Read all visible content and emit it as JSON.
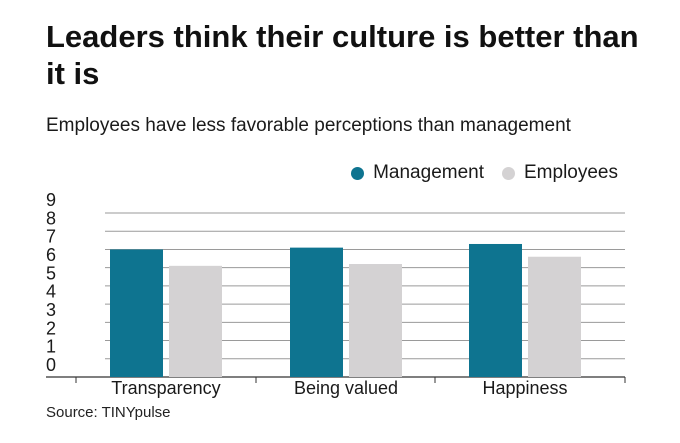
{
  "title": "Leaders think their culture is better than it is",
  "subtitle": "Employees have less favorable perceptions than management",
  "source": "Source: TINYpulse",
  "colors": {
    "management": "#0e7490",
    "employees": "#d4d2d3",
    "grid": "#9a9a9a",
    "axis": "#333333",
    "text": "#1a1a1a"
  },
  "chart_data": {
    "type": "bar",
    "categories": [
      "Transparency",
      "Being valued",
      "Happiness"
    ],
    "series": [
      {
        "name": "Management",
        "values": [
          7.0,
          7.1,
          7.3
        ]
      },
      {
        "name": "Employees",
        "values": [
          6.1,
          6.2,
          6.6
        ]
      }
    ],
    "ylim": [
      0,
      9
    ],
    "yticks": [
      0,
      1,
      2,
      3,
      4,
      5,
      6,
      7,
      8,
      9
    ],
    "grid": true,
    "legend": "top-right",
    "xlabel": "",
    "ylabel": ""
  }
}
